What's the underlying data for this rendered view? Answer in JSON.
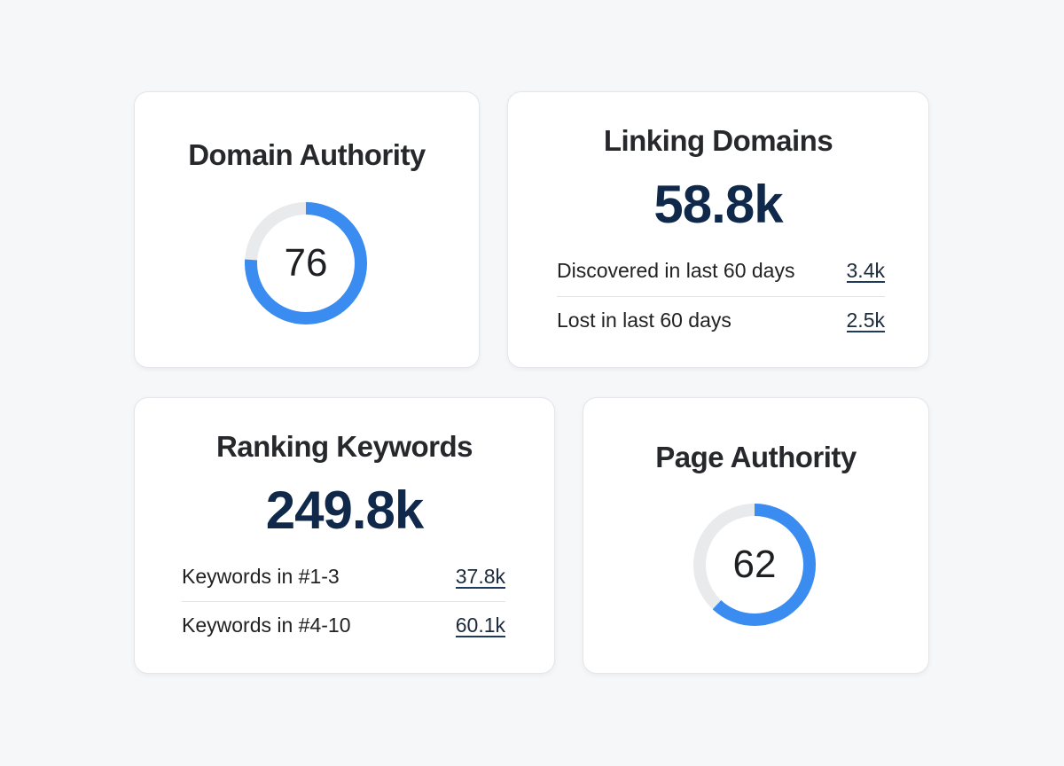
{
  "colors": {
    "accent": "#3b8cf0",
    "track": "#e9eaec",
    "number": "#10294a"
  },
  "domain_authority": {
    "title": "Domain Authority",
    "value": "76",
    "percent": 76
  },
  "linking_domains": {
    "title": "Linking Domains",
    "total": "58.8k",
    "rows": [
      {
        "label": "Discovered in last 60 days",
        "value": "3.4k"
      },
      {
        "label": "Lost in last 60 days",
        "value": "2.5k"
      }
    ]
  },
  "ranking_keywords": {
    "title": "Ranking Keywords",
    "total": "249.8k",
    "rows": [
      {
        "label": "Keywords in #1-3",
        "value": "37.8k"
      },
      {
        "label": "Keywords in #4-10",
        "value": "60.1k"
      }
    ]
  },
  "page_authority": {
    "title": "Page Authority",
    "value": "62",
    "percent": 62
  }
}
